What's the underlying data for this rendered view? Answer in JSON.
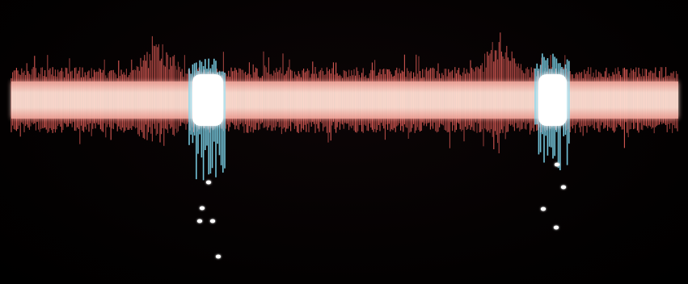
{
  "scene": {
    "description_free": true,
    "colors": {
      "background": "#040202",
      "trace_core": "#ffd6c8",
      "trace_edge": "#e8605a",
      "burst_core": "#ffffff",
      "burst_edge": "#7fd8f0",
      "dot": "#ffffff"
    }
  }
}
